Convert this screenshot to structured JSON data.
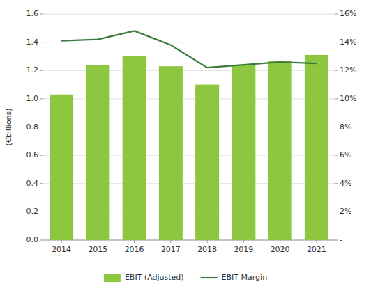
{
  "chart_data": {
    "type": "bar",
    "ylabel": "(€billions)",
    "categories": [
      "2014",
      "2015",
      "2016",
      "2017",
      "2018",
      "2019",
      "2020",
      "2021"
    ],
    "series": [
      {
        "name": "EBIT (Adjusted)",
        "type": "bar",
        "color": "#8dc63f",
        "values": [
          1.03,
          1.24,
          1.3,
          1.23,
          1.1,
          1.24,
          1.27,
          1.31
        ]
      },
      {
        "name": "EBIT Margin",
        "type": "line",
        "color": "#3a7a3a",
        "axis": "y2",
        "values": [
          14.1,
          14.2,
          14.8,
          13.8,
          12.2,
          12.4,
          12.6,
          12.5
        ]
      }
    ],
    "ylim": [
      0,
      1.6
    ],
    "yticks": [
      {
        "value": 0.0,
        "label": "0.0"
      },
      0.2,
      0.4,
      0.6,
      0.8,
      {
        "value": 1.0,
        "label": "1.0"
      },
      1.2,
      1.4,
      1.6
    ],
    "y2lim": [
      0,
      16
    ],
    "y2ticks": [
      {
        "value": 0,
        "label": "-"
      },
      {
        "value": 2,
        "label": "2%"
      },
      {
        "value": 4,
        "label": "4%"
      },
      {
        "value": 6,
        "label": "6%"
      },
      {
        "value": 8,
        "label": "8%"
      },
      {
        "value": 10,
        "label": "10%"
      },
      {
        "value": 12,
        "label": "12%"
      },
      {
        "value": 14,
        "label": "14%"
      },
      {
        "value": 16,
        "label": "16%"
      }
    ],
    "grid": true,
    "legend": "bottom"
  }
}
